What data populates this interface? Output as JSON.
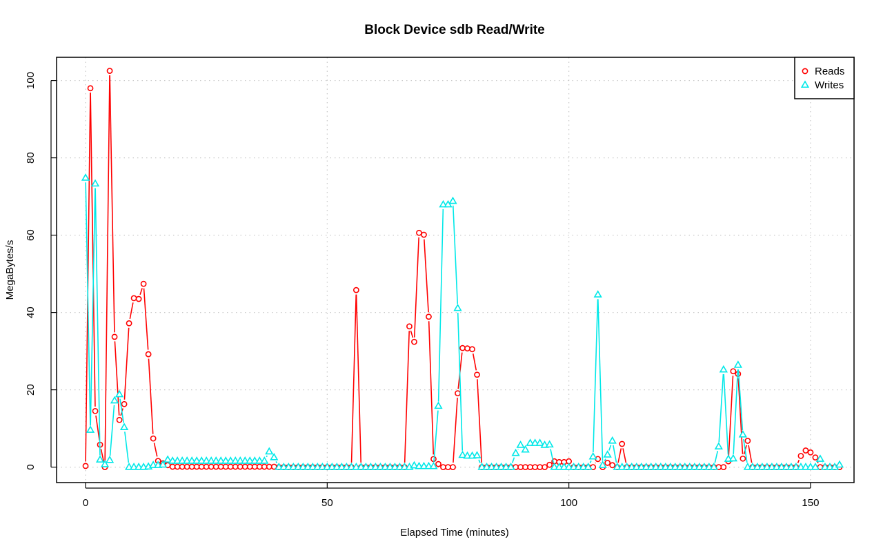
{
  "chart_data": {
    "type": "line",
    "title": "Block Device sdb Read/Write",
    "xlabel": "Elapsed Time (minutes)",
    "ylabel": "MegaBytes/s",
    "xlim": [
      -6,
      159
    ],
    "ylim": [
      -4,
      106
    ],
    "x_ticks": [
      0,
      50,
      100,
      150
    ],
    "y_ticks": [
      0,
      20,
      40,
      60,
      80,
      100
    ],
    "grid": true,
    "legend_position": "top-right",
    "series": [
      {
        "name": "Reads",
        "color": "#ff0000",
        "marker": "circle",
        "values": [
          0.3,
          98,
          14.5,
          5.8,
          0,
          102.5,
          33.7,
          12.2,
          16.3,
          37.2,
          43.7,
          43.5,
          47.4,
          29.2,
          7.4,
          1.6,
          1.0,
          0.5,
          0.1,
          0.1,
          0.1,
          0.1,
          0.1,
          0.1,
          0.1,
          0.1,
          0.1,
          0.1,
          0.1,
          0.1,
          0.1,
          0.1,
          0.1,
          0.1,
          0.1,
          0.1,
          0.1,
          0.1,
          0.1,
          0.1,
          0,
          0,
          0,
          0,
          0,
          0,
          0,
          0,
          0,
          0,
          0,
          0,
          0,
          0,
          0,
          0,
          45.8,
          0,
          0,
          0,
          0,
          0,
          0,
          0,
          0,
          0,
          0,
          36.4,
          32.4,
          60.6,
          60.1,
          38.9,
          2.1,
          0.8,
          0,
          0,
          0,
          19.1,
          30.8,
          30.7,
          30.5,
          23.9,
          0,
          0,
          0,
          0,
          0,
          0,
          0,
          0,
          0,
          0,
          0,
          0,
          0,
          0,
          0.6,
          1.5,
          1.3,
          1.3,
          1.5,
          0,
          0,
          0,
          0,
          0,
          2.1,
          0,
          1.1,
          0.5,
          0,
          6.0,
          0,
          0,
          0,
          0,
          0,
          0,
          0,
          0,
          0,
          0,
          0,
          0,
          0,
          0,
          0,
          0,
          0,
          0,
          0,
          0,
          0,
          1.5,
          24.8,
          24.1,
          2.2,
          6.8,
          0,
          0,
          0,
          0,
          0,
          0,
          0,
          0,
          0,
          0,
          2.9,
          4.3,
          3.8,
          2.5,
          0,
          0,
          0,
          0,
          0
        ]
      },
      {
        "name": "Writes",
        "color": "#00e8e8",
        "marker": "triangle",
        "values": [
          74.8,
          9.6,
          73.3,
          1.9,
          0.7,
          1.8,
          17.2,
          18.8,
          10.3,
          0,
          0,
          0,
          0,
          0.1,
          0.5,
          0.5,
          0.6,
          1.9,
          1.6,
          1.6,
          1.6,
          1.6,
          1.6,
          1.6,
          1.6,
          1.6,
          1.6,
          1.6,
          1.6,
          1.6,
          1.6,
          1.6,
          1.6,
          1.6,
          1.6,
          1.6,
          1.6,
          1.6,
          4.0,
          2.5,
          0,
          0,
          0,
          0,
          0,
          0,
          0,
          0,
          0,
          0,
          0,
          0,
          0,
          0,
          0,
          0,
          0,
          0,
          0,
          0,
          0,
          0,
          0,
          0,
          0,
          0,
          0,
          0,
          0.4,
          0.2,
          0.2,
          0.2,
          0.2,
          15.8,
          67.9,
          67.9,
          68.8,
          41.1,
          3.1,
          2.9,
          2.9,
          3.0,
          0,
          0,
          0,
          0,
          0,
          0,
          0,
          3.6,
          5.7,
          4.5,
          6.2,
          6.2,
          6.2,
          5.7,
          5.8,
          0,
          0,
          0,
          0,
          0,
          0,
          0,
          0,
          2.7,
          44.6,
          0.5,
          3.2,
          6.8,
          0,
          0,
          0,
          0,
          0,
          0,
          0,
          0,
          0,
          0,
          0,
          0,
          0,
          0,
          0,
          0,
          0,
          0,
          0,
          0,
          0,
          5.3,
          25.2,
          2.1,
          2.2,
          26.4,
          8.4,
          0,
          0,
          0,
          0,
          0,
          0,
          0,
          0,
          0,
          0,
          0,
          0,
          0,
          0,
          0,
          2.1,
          0,
          0,
          0,
          0.6
        ]
      }
    ]
  }
}
